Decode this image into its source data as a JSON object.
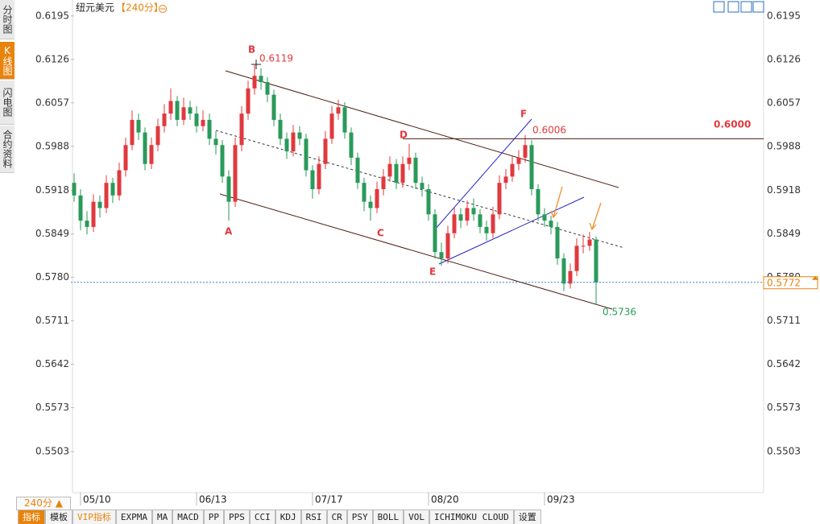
{
  "header": {
    "title": "纽元美元",
    "period": "【240分】"
  },
  "sidebar": [
    "分时图",
    "K线图",
    "闪电图",
    "合约资料"
  ],
  "period_selector": "240分 ▲",
  "toolbar": [
    "指标",
    "模板",
    "VIP指标",
    "EXPMA",
    "MA",
    "MACD",
    "PP",
    "PPS",
    "CCI",
    "KDJ",
    "RSI",
    "CR",
    "PSY",
    "BOLL",
    "VOL",
    "ICHIMOKU CLOUD",
    "设置"
  ],
  "chart_data": {
    "type": "candlestick",
    "candles": [
      [
        0.593,
        0.5945,
        0.59,
        0.591
      ],
      [
        0.591,
        0.592,
        0.5855,
        0.587
      ],
      [
        0.587,
        0.5885,
        0.5848,
        0.586
      ],
      [
        0.586,
        0.5912,
        0.5852,
        0.59
      ],
      [
        0.59,
        0.591,
        0.5875,
        0.589
      ],
      [
        0.589,
        0.5942,
        0.5882,
        0.593
      ],
      [
        0.593,
        0.5938,
        0.5898,
        0.591
      ],
      [
        0.591,
        0.5962,
        0.5902,
        0.595
      ],
      [
        0.595,
        0.6002,
        0.594,
        0.599
      ],
      [
        0.599,
        0.6045,
        0.5982,
        0.603
      ],
      [
        0.603,
        0.604,
        0.5998,
        0.601
      ],
      [
        0.601,
        0.6018,
        0.595,
        0.596
      ],
      [
        0.596,
        0.6002,
        0.5952,
        0.599
      ],
      [
        0.599,
        0.6032,
        0.598,
        0.602
      ],
      [
        0.602,
        0.6055,
        0.601,
        0.604
      ],
      [
        0.604,
        0.608,
        0.603,
        0.606
      ],
      [
        0.606,
        0.6068,
        0.602,
        0.603
      ],
      [
        0.603,
        0.6065,
        0.6022,
        0.605
      ],
      [
        0.605,
        0.606,
        0.603,
        0.604
      ],
      [
        0.604,
        0.6052,
        0.601,
        0.602
      ],
      [
        0.602,
        0.6045,
        0.6012,
        0.603
      ],
      [
        0.603,
        0.604,
        0.599,
        0.6
      ],
      [
        0.6,
        0.6012,
        0.5975,
        0.599
      ],
      [
        0.599,
        0.5998,
        0.593,
        0.594
      ],
      [
        0.594,
        0.595,
        0.587,
        0.59
      ],
      [
        0.59,
        0.6002,
        0.5892,
        0.599
      ],
      [
        0.599,
        0.6052,
        0.598,
        0.604
      ],
      [
        0.604,
        0.6092,
        0.603,
        0.608
      ],
      [
        0.608,
        0.6119,
        0.607,
        0.61
      ],
      [
        0.61,
        0.6112,
        0.6078,
        0.609
      ],
      [
        0.609,
        0.6098,
        0.6058,
        0.607
      ],
      [
        0.607,
        0.6078,
        0.602,
        0.603
      ],
      [
        0.603,
        0.604,
        0.599,
        0.6
      ],
      [
        0.6,
        0.601,
        0.5968,
        0.598
      ],
      [
        0.598,
        0.6022,
        0.5972,
        0.601
      ],
      [
        0.601,
        0.602,
        0.599,
        0.6
      ],
      [
        0.6,
        0.6008,
        0.594,
        0.595
      ],
      [
        0.595,
        0.5958,
        0.5905,
        0.592
      ],
      [
        0.592,
        0.5972,
        0.5912,
        0.596
      ],
      [
        0.596,
        0.6012,
        0.5952,
        0.6
      ],
      [
        0.6,
        0.6052,
        0.5992,
        0.604
      ],
      [
        0.604,
        0.6062,
        0.603,
        0.605
      ],
      [
        0.605,
        0.6058,
        0.6,
        0.601
      ],
      [
        0.601,
        0.6018,
        0.5958,
        0.597
      ],
      [
        0.597,
        0.5978,
        0.592,
        0.593
      ],
      [
        0.593,
        0.5938,
        0.5885,
        0.59
      ],
      [
        0.59,
        0.591,
        0.587,
        0.589
      ],
      [
        0.589,
        0.5932,
        0.5882,
        0.592
      ],
      [
        0.592,
        0.5952,
        0.591,
        0.594
      ],
      [
        0.594,
        0.5972,
        0.5932,
        0.596
      ],
      [
        0.596,
        0.5968,
        0.592,
        0.593
      ],
      [
        0.593,
        0.5972,
        0.5922,
        0.596
      ],
      [
        0.596,
        0.5992,
        0.595,
        0.597
      ],
      [
        0.597,
        0.5978,
        0.592,
        0.593
      ],
      [
        0.593,
        0.594,
        0.5908,
        0.592
      ],
      [
        0.592,
        0.5928,
        0.587,
        0.588
      ],
      [
        0.588,
        0.5888,
        0.581,
        0.582
      ],
      [
        0.582,
        0.5835,
        0.5798,
        0.581
      ],
      [
        0.581,
        0.5862,
        0.5802,
        0.585
      ],
      [
        0.585,
        0.5892,
        0.5842,
        0.588
      ],
      [
        0.588,
        0.589,
        0.5858,
        0.587
      ],
      [
        0.587,
        0.5902,
        0.5862,
        0.589
      ],
      [
        0.589,
        0.5905,
        0.587,
        0.588
      ],
      [
        0.588,
        0.5888,
        0.585,
        0.586
      ],
      [
        0.586,
        0.587,
        0.5838,
        0.585
      ],
      [
        0.585,
        0.5892,
        0.5842,
        0.588
      ],
      [
        0.588,
        0.5942,
        0.5872,
        0.593
      ],
      [
        0.593,
        0.5952,
        0.592,
        0.594
      ],
      [
        0.594,
        0.5972,
        0.5932,
        0.596
      ],
      [
        0.596,
        0.5982,
        0.595,
        0.597
      ],
      [
        0.597,
        0.6006,
        0.5962,
        0.599
      ],
      [
        0.599,
        0.5998,
        0.591,
        0.592
      ],
      [
        0.592,
        0.5928,
        0.587,
        0.588
      ],
      [
        0.588,
        0.589,
        0.586,
        0.587
      ],
      [
        0.587,
        0.5878,
        0.5848,
        0.586
      ],
      [
        0.586,
        0.5868,
        0.58,
        0.581
      ],
      [
        0.581,
        0.5818,
        0.5758,
        0.577
      ],
      [
        0.577,
        0.5802,
        0.5762,
        0.579
      ],
      [
        0.579,
        0.5842,
        0.5782,
        0.583
      ],
      [
        0.583,
        0.5848,
        0.5818,
        0.583
      ],
      [
        0.583,
        0.5852,
        0.5822,
        0.584
      ],
      [
        0.584,
        0.5845,
        0.5736,
        0.5772
      ]
    ],
    "up_color": "#e0393e",
    "down_color": "#2a9a5a",
    "xlim": [
      -0.5,
      107
    ],
    "xticks": [
      {
        "value": 1,
        "label": "05/10"
      },
      {
        "value": 19,
        "label": "06/13"
      },
      {
        "value": 37,
        "label": "07/17"
      },
      {
        "value": 55,
        "label": "08/20"
      },
      {
        "value": 73,
        "label": "09/23"
      }
    ],
    "ylim": [
      0.5447,
      0.6214
    ],
    "yticks": [
      0.6195,
      0.6126,
      0.6057,
      0.5988,
      0.5918,
      0.5849,
      {
        "value": 0.578,
        "label": "0.5780"
      },
      0.5711,
      0.5642,
      0.5573,
      0.5503
    ],
    "grid": false,
    "point_labels": [
      "A",
      "B",
      "C",
      "D",
      "E",
      "F"
    ],
    "high_label": 0.6119,
    "f_label": 0.6006,
    "low_label": 0.5736,
    "level": {
      "value": 0.6,
      "label": "0.6000"
    },
    "last_price": 0.5772
  }
}
